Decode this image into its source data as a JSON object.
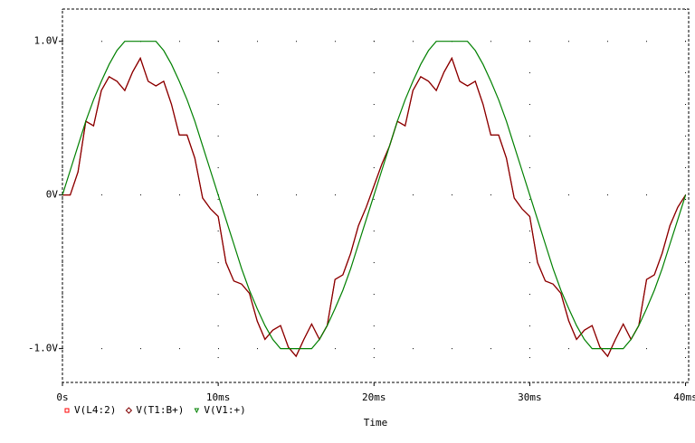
{
  "chart_data": {
    "type": "line",
    "x_label": "Time",
    "x": [
      0,
      0.5,
      1,
      1.5,
      2,
      2.5,
      3,
      3.5,
      4,
      4.5,
      5,
      5.5,
      6,
      6.5,
      7,
      7.5,
      8,
      8.5,
      9,
      9.5,
      10,
      10.5,
      11,
      11.5,
      12,
      12.5,
      13,
      13.5,
      14,
      14.5,
      15,
      15.5,
      16,
      16.5,
      17,
      17.5,
      18,
      18.5,
      19,
      19.5,
      20,
      20.5,
      21,
      21.5,
      22,
      22.5,
      23,
      23.5,
      24,
      24.5,
      25,
      25.5,
      26,
      26.5,
      27,
      27.5,
      28,
      28.5,
      29,
      29.5,
      30,
      30.5,
      31,
      31.5,
      32,
      32.5,
      33,
      33.5,
      34,
      34.5,
      35,
      35.5,
      36,
      36.5,
      37,
      37.5,
      38,
      38.5,
      39,
      39.5,
      40
    ],
    "series": [
      {
        "name": "V(L4:2)",
        "color": "#ff0000",
        "marker": "square",
        "values": [
          0,
          0,
          0.15,
          0.48,
          0.45,
          0.68,
          0.77,
          0.74,
          0.68,
          0.8,
          0.89,
          0.74,
          0.71,
          0.74,
          0.59,
          0.39,
          0.39,
          0.24,
          -0.02,
          -0.09,
          -0.14,
          -0.44,
          -0.56,
          -0.58,
          -0.64,
          -0.82,
          -0.94,
          -0.88,
          -0.85,
          -0.99,
          -1.05,
          -0.94,
          -0.84,
          -0.94,
          -0.85,
          -0.55,
          -0.52,
          -0.38,
          -0.2,
          -0.08,
          0.06,
          0.2,
          0.32,
          0.48,
          0.45,
          0.68,
          0.77,
          0.74,
          0.68,
          0.8,
          0.89,
          0.74,
          0.71,
          0.74,
          0.59,
          0.39,
          0.39,
          0.24,
          -0.02,
          -0.09,
          -0.14,
          -0.44,
          -0.56,
          -0.58,
          -0.64,
          -0.82,
          -0.94,
          -0.88,
          -0.85,
          -0.99,
          -1.05,
          -0.94,
          -0.84,
          -0.94,
          -0.85,
          -0.55,
          -0.52,
          -0.38,
          -0.2,
          -0.08,
          0
        ]
      },
      {
        "name": "V(T1:B+)",
        "color": "#800000",
        "marker": "diamond",
        "values": [
          0,
          0,
          0.15,
          0.48,
          0.45,
          0.68,
          0.77,
          0.74,
          0.68,
          0.8,
          0.89,
          0.74,
          0.71,
          0.74,
          0.59,
          0.39,
          0.39,
          0.24,
          -0.02,
          -0.09,
          -0.14,
          -0.44,
          -0.56,
          -0.58,
          -0.64,
          -0.82,
          -0.94,
          -0.88,
          -0.85,
          -0.99,
          -1.05,
          -0.94,
          -0.84,
          -0.94,
          -0.85,
          -0.55,
          -0.52,
          -0.38,
          -0.2,
          -0.08,
          0.06,
          0.2,
          0.32,
          0.48,
          0.45,
          0.68,
          0.77,
          0.74,
          0.68,
          0.8,
          0.89,
          0.74,
          0.71,
          0.74,
          0.59,
          0.39,
          0.39,
          0.24,
          -0.02,
          -0.09,
          -0.14,
          -0.44,
          -0.56,
          -0.58,
          -0.64,
          -0.82,
          -0.94,
          -0.88,
          -0.85,
          -0.99,
          -1.05,
          -0.94,
          -0.84,
          -0.94,
          -0.85,
          -0.55,
          -0.52,
          -0.38,
          -0.2,
          -0.08,
          0
        ]
      },
      {
        "name": "V(V1:+)",
        "color": "#008000",
        "marker": "triangle",
        "values": [
          0,
          0.16,
          0.32,
          0.48,
          0.62,
          0.74,
          0.85,
          0.94,
          1,
          1,
          1,
          1,
          1,
          0.94,
          0.85,
          0.74,
          0.62,
          0.48,
          0.32,
          0.16,
          0,
          -0.16,
          -0.32,
          -0.48,
          -0.62,
          -0.74,
          -0.85,
          -0.94,
          -1,
          -1,
          -1,
          -1,
          -1,
          -0.94,
          -0.85,
          -0.74,
          -0.62,
          -0.48,
          -0.32,
          -0.16,
          0,
          0.16,
          0.32,
          0.48,
          0.62,
          0.74,
          0.85,
          0.94,
          1,
          1,
          1,
          1,
          1,
          0.94,
          0.85,
          0.74,
          0.62,
          0.48,
          0.32,
          0.16,
          0,
          -0.16,
          -0.32,
          -0.48,
          -0.62,
          -0.74,
          -0.85,
          -0.94,
          -1,
          -1,
          -1,
          -1,
          -1,
          -0.94,
          -0.85,
          -0.74,
          -0.62,
          -0.48,
          -0.32,
          -0.16,
          0
        ]
      }
    ],
    "xlim": [
      0,
      40.2
    ],
    "xticks": [
      {
        "value": 0,
        "label": "0s"
      },
      {
        "value": 10,
        "label": "10ms"
      },
      {
        "value": 20,
        "label": "20ms"
      },
      {
        "value": 30,
        "label": "30ms"
      },
      {
        "value": 40,
        "label": "40ms"
      }
    ],
    "ylim": [
      -1.22,
      1.21
    ],
    "yticks": [
      {
        "value": 1,
        "label": "1.0V"
      },
      {
        "value": 0,
        "label": "0V"
      },
      {
        "value": -1,
        "label": "-1.0V"
      }
    ],
    "grid": true
  }
}
